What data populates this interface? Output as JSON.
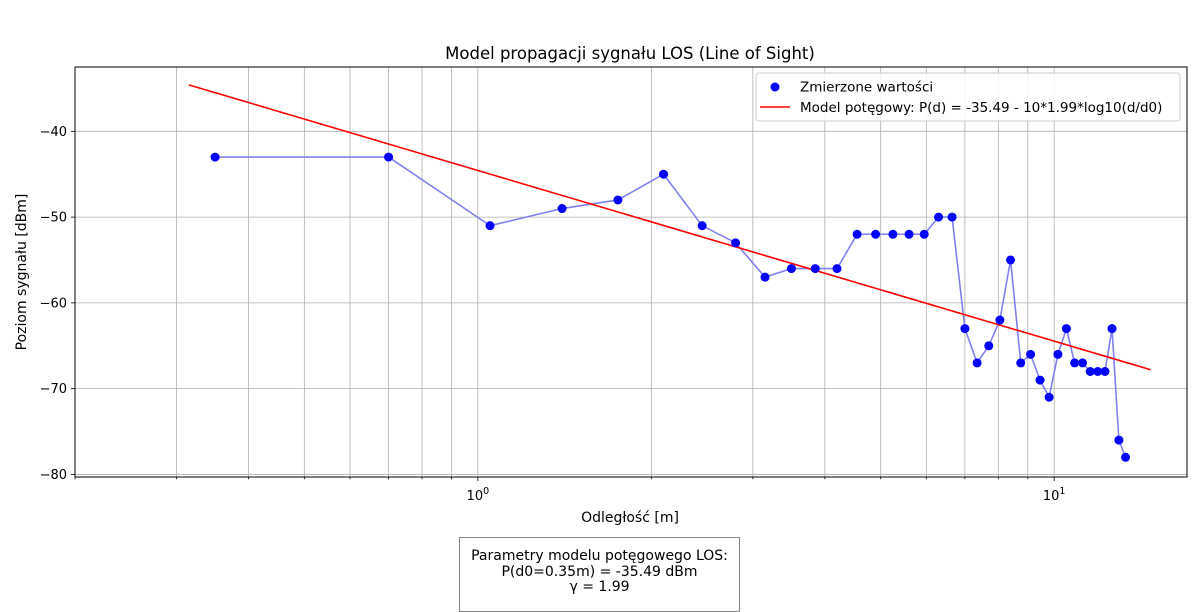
{
  "chart_data": {
    "type": "scatter",
    "title": "Model propagacji sygnału LOS (Line of Sight)",
    "xlabel": "Odległość [m]",
    "ylabel": "Poziom sygnału [dBm]",
    "x_scale": "log",
    "xlim": [
      0.2,
      17
    ],
    "ylim": [
      -80.3,
      -32.5
    ],
    "x_ticks": [
      {
        "value": 1,
        "label": "10^0"
      },
      {
        "value": 10,
        "label": "10^1"
      }
    ],
    "y_ticks": [
      -40,
      -50,
      -60,
      -70,
      -80
    ],
    "y_tick_labels": [
      "−40",
      "−50",
      "−60",
      "−70",
      "−80"
    ],
    "grid": true,
    "legend_position": "top-right",
    "series": [
      {
        "name": "Zmierzone wartości",
        "color": "#0000ff",
        "line_color": "#8080f0",
        "points": [
          [
            0.35,
            -43
          ],
          [
            0.7,
            -43
          ],
          [
            1.05,
            -51
          ],
          [
            1.4,
            -49
          ],
          [
            1.75,
            -48
          ],
          [
            2.1,
            -45
          ],
          [
            2.45,
            -51
          ],
          [
            2.8,
            -53
          ],
          [
            3.15,
            -57
          ],
          [
            3.5,
            -56
          ],
          [
            3.85,
            -56
          ],
          [
            4.2,
            -56
          ],
          [
            4.55,
            -52
          ],
          [
            4.9,
            -52
          ],
          [
            5.25,
            -52
          ],
          [
            5.6,
            -52
          ],
          [
            5.95,
            -52
          ],
          [
            6.3,
            -50
          ],
          [
            6.65,
            -50
          ],
          [
            7.0,
            -63
          ],
          [
            7.35,
            -67
          ],
          [
            7.7,
            -65
          ],
          [
            8.05,
            -62
          ],
          [
            8.4,
            -55
          ],
          [
            8.75,
            -67
          ],
          [
            9.1,
            -66
          ],
          [
            9.45,
            -69
          ],
          [
            9.8,
            -71
          ],
          [
            10.15,
            -66
          ],
          [
            10.5,
            -63
          ],
          [
            10.85,
            -67
          ],
          [
            11.2,
            -67
          ],
          [
            11.55,
            -68
          ],
          [
            11.9,
            -68
          ],
          [
            12.25,
            -68
          ],
          [
            12.6,
            -63
          ],
          [
            12.95,
            -76
          ],
          [
            13.3,
            -78
          ]
        ]
      },
      {
        "name": "Model potęgowy: P(d) = -35.49 - 10*1.99*log10(d/d0)",
        "color": "#ff0000",
        "type": "line",
        "d0": 0.35,
        "P0": -35.49,
        "gamma": 1.99,
        "x_range": [
          0.315,
          14.7
        ]
      }
    ]
  },
  "params_box": {
    "line1": "Parametry modelu potęgowego LOS:",
    "line2": "P(d0=0.35m) = -35.49 dBm",
    "line3": "γ = 1.99"
  }
}
